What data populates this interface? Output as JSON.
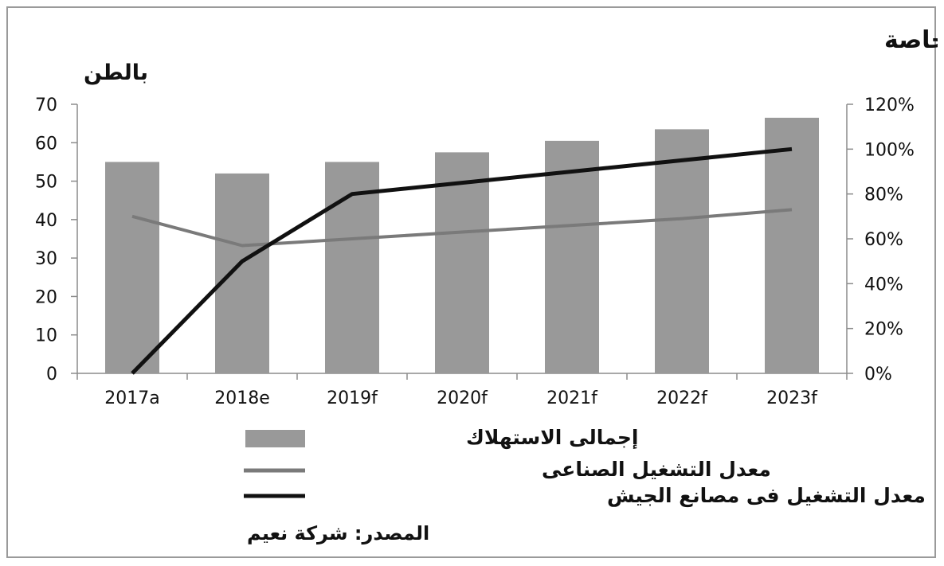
{
  "chart_data": {
    "type": "bar",
    "title": "إجمالى الاستهلاك ومعدل التشغيل فى مصانع الجيش والشركات الخاصة",
    "left_axis_unit": "بالطن",
    "categories": [
      "2017a",
      "2018e",
      "2019f",
      "2020f",
      "2021f",
      "2022f",
      "2023f"
    ],
    "y_left": {
      "min": 0,
      "max": 70,
      "ticks": [
        0,
        10,
        20,
        30,
        40,
        50,
        60,
        70
      ]
    },
    "y_right": {
      "min": 0,
      "max": 120,
      "ticks": [
        "0%",
        "20%",
        "40%",
        "60%",
        "80%",
        "100%",
        "120%"
      ]
    },
    "series": [
      {
        "name": "إجمالى الاستهلاك",
        "type": "bar",
        "axis": "left",
        "color": "#999999",
        "values": [
          55,
          52,
          55,
          57.5,
          60.5,
          63.5,
          66.5
        ]
      },
      {
        "name": "معدل التشغيل الصناعى",
        "type": "line",
        "axis": "right",
        "color": "#7a7a7a",
        "values": [
          70,
          57,
          60,
          63,
          66,
          69,
          73
        ]
      },
      {
        "name": "معدل التشغيل فى مصانع الجيش",
        "type": "line",
        "axis": "right",
        "color": "#111111",
        "values": [
          0,
          50,
          80,
          85,
          90,
          95,
          100
        ]
      }
    ],
    "source": "المصدر: شركة نعيم",
    "grid": false,
    "legend_position": "bottom"
  }
}
